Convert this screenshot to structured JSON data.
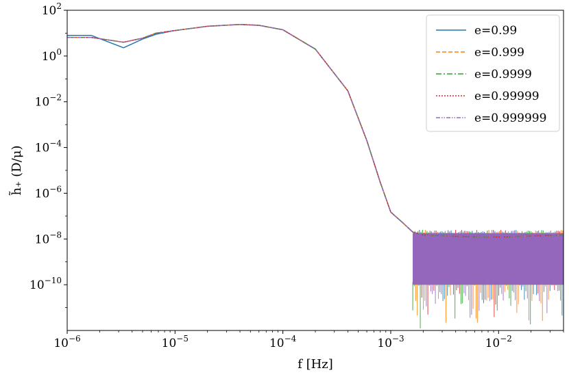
{
  "chart_data": {
    "type": "line",
    "xscale": "log",
    "yscale": "log",
    "xlim": [
      1e-06,
      0.04
    ],
    "ylim": [
      1e-12,
      100
    ],
    "xlabel": "f [Hz]",
    "ylabel": "h̃₊ (D/μ)",
    "x_ticks": [
      {
        "value": 1e-06,
        "base": "10",
        "exp": "−6"
      },
      {
        "value": 1e-05,
        "base": "10",
        "exp": "−5"
      },
      {
        "value": 0.0001,
        "base": "10",
        "exp": "−4"
      },
      {
        "value": 0.001,
        "base": "10",
        "exp": "−3"
      },
      {
        "value": 0.01,
        "base": "10",
        "exp": "−2"
      }
    ],
    "y_ticks": [
      {
        "value": 100,
        "base": "10",
        "exp": "2"
      },
      {
        "value": 1,
        "base": "10",
        "exp": "0"
      },
      {
        "value": 0.01,
        "base": "10",
        "exp": "−2"
      },
      {
        "value": 0.0001,
        "base": "10",
        "exp": "−4"
      },
      {
        "value": 1e-06,
        "base": "10",
        "exp": "−6"
      },
      {
        "value": 1e-08,
        "base": "10",
        "exp": "−8"
      },
      {
        "value": 1e-10,
        "base": "10",
        "exp": "−10"
      }
    ],
    "legend_position": "top-right",
    "grid": false,
    "series": [
      {
        "name": "e=0.99",
        "color": "#1f77b4",
        "dash": "solid",
        "points": [
          [
            1e-06,
            8.0
          ],
          [
            1.67e-06,
            8.0
          ],
          [
            3.33e-06,
            2.3
          ],
          [
            5e-06,
            5.5
          ],
          [
            6.67e-06,
            9.0
          ],
          [
            1e-05,
            13
          ],
          [
            2e-05,
            20
          ],
          [
            4e-05,
            24
          ],
          [
            6e-05,
            22
          ],
          [
            0.0001,
            14
          ],
          [
            0.0002,
            2.0
          ],
          [
            0.0004,
            0.03
          ],
          [
            0.0006,
            0.0002
          ],
          [
            0.0008,
            3e-06
          ],
          [
            0.001,
            1.5e-07
          ],
          [
            0.0013,
            5e-08
          ],
          [
            0.0016,
            2e-08
          ],
          [
            0.002,
            1.5e-08
          ],
          [
            0.004,
            1.3e-08
          ],
          [
            0.01,
            1.2e-08
          ],
          [
            0.04,
            1.5e-08
          ]
        ]
      },
      {
        "name": "e=0.999",
        "color": "#ff7f0e",
        "dash": "6,3",
        "points": [
          [
            1e-06,
            6.5
          ],
          [
            1.67e-06,
            6.5
          ],
          [
            3.33e-06,
            4.0
          ],
          [
            5e-06,
            6.0
          ],
          [
            6.67e-06,
            10
          ],
          [
            1e-05,
            13
          ],
          [
            2e-05,
            20
          ],
          [
            4e-05,
            24
          ],
          [
            6e-05,
            22
          ],
          [
            0.0001,
            14
          ],
          [
            0.0002,
            2.0
          ],
          [
            0.0004,
            0.03
          ],
          [
            0.0006,
            0.0002
          ],
          [
            0.0008,
            3e-06
          ],
          [
            0.001,
            1.5e-07
          ],
          [
            0.0013,
            5e-08
          ],
          [
            0.0016,
            2e-08
          ],
          [
            0.002,
            1.5e-08
          ],
          [
            0.004,
            1.3e-08
          ],
          [
            0.01,
            1.2e-08
          ],
          [
            0.04,
            1.5e-08
          ]
        ]
      },
      {
        "name": "e=0.9999",
        "color": "#2ca02c",
        "dash": "8,3,2,3",
        "points": [
          [
            1e-06,
            6.5
          ],
          [
            1.67e-06,
            6.5
          ],
          [
            3.33e-06,
            4.0
          ],
          [
            5e-06,
            6.0
          ],
          [
            6.67e-06,
            10
          ],
          [
            1e-05,
            13
          ],
          [
            2e-05,
            20
          ],
          [
            4e-05,
            24
          ],
          [
            6e-05,
            22
          ],
          [
            0.0001,
            14
          ],
          [
            0.0002,
            2.0
          ],
          [
            0.0004,
            0.03
          ],
          [
            0.0006,
            0.0002
          ],
          [
            0.0008,
            3e-06
          ],
          [
            0.001,
            1.5e-07
          ],
          [
            0.0013,
            5e-08
          ],
          [
            0.0016,
            2e-08
          ],
          [
            0.002,
            1.5e-08
          ],
          [
            0.004,
            1.3e-08
          ],
          [
            0.01,
            1.2e-08
          ],
          [
            0.04,
            1.5e-08
          ]
        ]
      },
      {
        "name": "e=0.99999",
        "color": "#d62728",
        "dash": "2,2",
        "points": [
          [
            1e-06,
            6.5
          ],
          [
            1.67e-06,
            6.5
          ],
          [
            3.33e-06,
            4.0
          ],
          [
            5e-06,
            6.0
          ],
          [
            6.67e-06,
            10
          ],
          [
            1e-05,
            13
          ],
          [
            2e-05,
            20
          ],
          [
            4e-05,
            24
          ],
          [
            6e-05,
            22
          ],
          [
            0.0001,
            14
          ],
          [
            0.0002,
            2.0
          ],
          [
            0.0004,
            0.03
          ],
          [
            0.0006,
            0.0002
          ],
          [
            0.0008,
            3e-06
          ],
          [
            0.001,
            1.5e-07
          ],
          [
            0.0013,
            5e-08
          ],
          [
            0.0016,
            2e-08
          ],
          [
            0.002,
            1.5e-08
          ],
          [
            0.004,
            1.3e-08
          ],
          [
            0.01,
            1.2e-08
          ],
          [
            0.04,
            1.5e-08
          ]
        ]
      },
      {
        "name": "e=0.999999",
        "color": "#9467bd",
        "dash": "6,2,1.5,2,1.5,2",
        "points": [
          [
            1e-06,
            6.5
          ],
          [
            1.67e-06,
            6.5
          ],
          [
            3.33e-06,
            4.0
          ],
          [
            5e-06,
            6.0
          ],
          [
            6.67e-06,
            10
          ],
          [
            1e-05,
            13
          ],
          [
            2e-05,
            20
          ],
          [
            4e-05,
            24
          ],
          [
            6e-05,
            22
          ],
          [
            0.0001,
            14
          ],
          [
            0.0002,
            2.0
          ],
          [
            0.0004,
            0.03
          ],
          [
            0.0006,
            0.0002
          ],
          [
            0.0008,
            3e-06
          ],
          [
            0.001,
            1.5e-07
          ],
          [
            0.0013,
            5e-08
          ],
          [
            0.0016,
            2e-08
          ],
          [
            0.002,
            1.5e-08
          ],
          [
            0.004,
            1.3e-08
          ],
          [
            0.01,
            1.2e-08
          ],
          [
            0.04,
            1.5e-08
          ]
        ]
      }
    ],
    "oscillation_band": {
      "color": "#9467bd",
      "x_start": 0.0016,
      "x_end": 0.04,
      "upper": 1.8e-08,
      "lower": 1e-10,
      "spike_min": 1e-12
    }
  }
}
